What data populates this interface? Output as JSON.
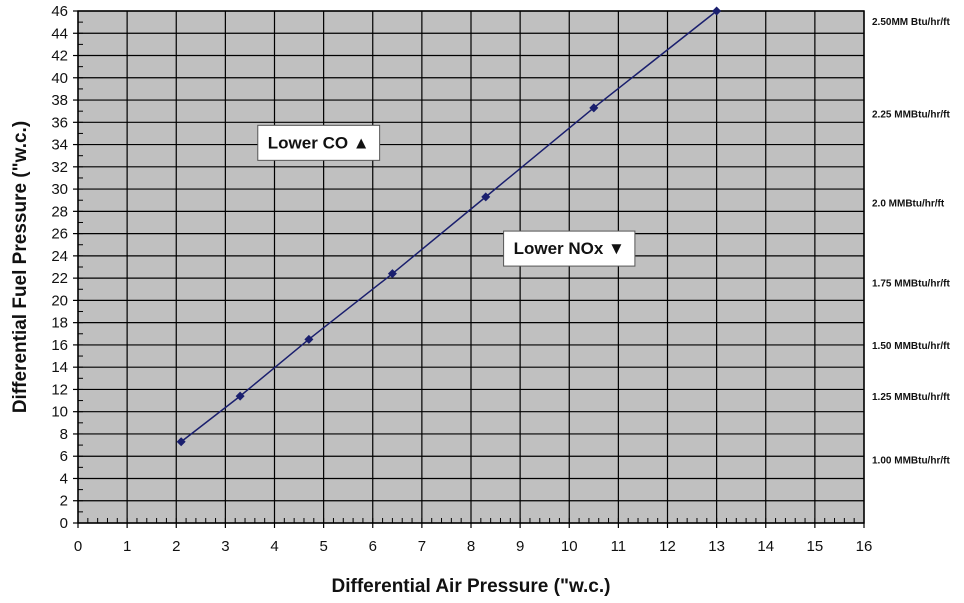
{
  "chart_data": {
    "type": "line",
    "xlabel": "Differential Air Pressure (\"w.c.)",
    "ylabel": "Differential Fuel Pressure (\"w.c.)",
    "xlim": [
      0,
      16
    ],
    "ylim": [
      0,
      46
    ],
    "x_ticks": [
      0,
      1,
      2,
      3,
      4,
      5,
      6,
      7,
      8,
      9,
      10,
      11,
      12,
      13,
      14,
      15,
      16
    ],
    "y_ticks": [
      0,
      2,
      4,
      6,
      8,
      10,
      12,
      14,
      16,
      18,
      20,
      22,
      24,
      26,
      28,
      30,
      32,
      34,
      36,
      38,
      40,
      42,
      44,
      46
    ],
    "grid": true,
    "series": [
      {
        "x": [
          2.1,
          3.3,
          4.7,
          6.4,
          8.3,
          10.5,
          13.0
        ],
        "y": [
          7.3,
          11.4,
          16.5,
          22.4,
          29.3,
          37.3,
          46.0
        ],
        "color": "#1a1f6e"
      }
    ],
    "right_labels": [
      {
        "text": "2.50MM Btu/hr/ft",
        "y": 45.1
      },
      {
        "text": "2.25 MMBtu/hr/ft",
        "y": 36.8
      },
      {
        "text": "2.0 MMBtu/hr/ft",
        "y": 28.8
      },
      {
        "text": "1.75 MMBtu/hr/ft",
        "y": 21.6
      },
      {
        "text": "1.50 MMBtu/hr/ft",
        "y": 16.0
      },
      {
        "text": "1.25 MMBtu/hr/ft",
        "y": 11.4
      },
      {
        "text": "1.00 MMBtu/hr/ft",
        "y": 5.7
      }
    ],
    "annotations": [
      {
        "text": "Lower CO ▲",
        "x": 4.9,
        "y": 34.2
      },
      {
        "text": "Lower NOx ▼",
        "x": 10.0,
        "y": 24.7
      }
    ],
    "plot_background": "#c0c0c0",
    "grid_color": "#000000"
  }
}
